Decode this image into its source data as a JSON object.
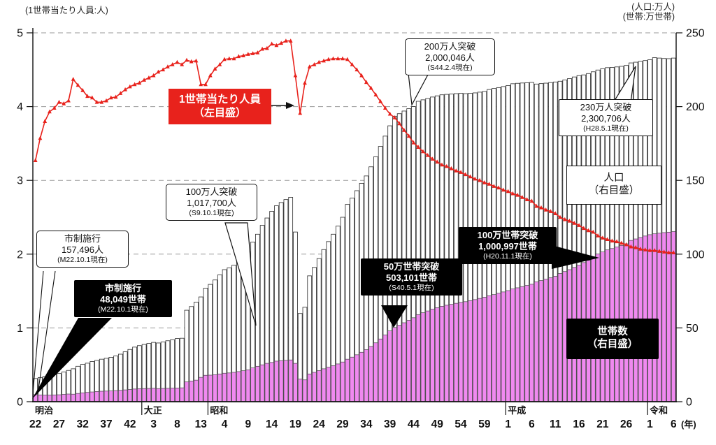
{
  "page": {
    "left_unit_label": "(1世帯当たり人員:人)",
    "right_unit_label_1": "(人口:万人)",
    "right_unit_label_2": "(世帯:万世帯)",
    "year_unit_label": "(年)"
  },
  "legend": {
    "line": {
      "line1": "1世帯当たり人員",
      "line2": "（左目盛）",
      "color": "#e8221c"
    },
    "population": {
      "line1": "人口",
      "line2": "（右目盛）"
    },
    "households": {
      "line1": "世帯数",
      "line2": "（右目盛）"
    }
  },
  "callouts": {
    "shisei_pop": {
      "line1": "市制施行",
      "line2": "157,496人",
      "line3": "(M22.10.1現在)"
    },
    "shisei_hh": {
      "line1": "市制施行",
      "line2": "48,049世帯",
      "line3": "(M22.10.1現在)"
    },
    "pop_1m": {
      "line1": "100万人突破",
      "line2": "1,017,700人",
      "line3": "(S9.10.1現在)"
    },
    "pop_2m": {
      "line1": "200万人突破",
      "line2": "2,000,046人",
      "line3": "(S44.2.4現在)"
    },
    "pop_2_3m": {
      "line1": "230万人突破",
      "line2": "2,300,706人",
      "line3": "(H28.5.1現在)"
    },
    "hh_500k": {
      "line1": "50万世帯突破",
      "line2": "503,101世帯",
      "line3": "(S40.5.1現在)"
    },
    "hh_1m": {
      "line1": "100万世帯突破",
      "line2": "1,000,997世帯",
      "line3": "(H20.11.1現在)"
    }
  },
  "chart_data": {
    "type": "bar",
    "subtype": "combo-bar-line",
    "title": "",
    "x": {
      "start_year": 1889,
      "end_year": 2024,
      "unit": "(年)"
    },
    "left_axis": {
      "label": "(1世帯当たり人員:人)",
      "min": 0,
      "max": 5,
      "ticks": [
        "0",
        "1",
        "2",
        "3",
        "4",
        "5"
      ]
    },
    "right_axis": {
      "labels": [
        "(人口:万人)",
        "(世帯:万世帯)"
      ],
      "min": 0,
      "max": 250,
      "ticks": [
        "0",
        "50",
        "100",
        "150",
        "200",
        "250"
      ]
    },
    "grid": "dashed-horizontal",
    "eras": [
      {
        "name": "明治",
        "start_year": 1889
      },
      {
        "name": "大正",
        "start_year": 1912
      },
      {
        "name": "昭和",
        "start_year": 1926
      },
      {
        "name": "平成",
        "start_year": 1989
      },
      {
        "name": "令和",
        "start_year": 2019
      }
    ],
    "x_tick_years": [
      {
        "era": "明治",
        "num": "22",
        "year": 1889
      },
      {
        "era": "明治",
        "num": "27",
        "year": 1894
      },
      {
        "era": "明治",
        "num": "32",
        "year": 1899
      },
      {
        "era": "明治",
        "num": "37",
        "year": 1904
      },
      {
        "era": "明治",
        "num": "42",
        "year": 1909
      },
      {
        "era": "大正",
        "num": "3",
        "year": 1914
      },
      {
        "era": "大正",
        "num": "8",
        "year": 1919
      },
      {
        "era": "大正",
        "num": "13",
        "year": 1924
      },
      {
        "era": "昭和",
        "num": "4",
        "year": 1929
      },
      {
        "era": "昭和",
        "num": "9",
        "year": 1934
      },
      {
        "era": "昭和",
        "num": "14",
        "year": 1939
      },
      {
        "era": "昭和",
        "num": "19",
        "year": 1944
      },
      {
        "era": "昭和",
        "num": "24",
        "year": 1949
      },
      {
        "era": "昭和",
        "num": "29",
        "year": 1954
      },
      {
        "era": "昭和",
        "num": "34",
        "year": 1959
      },
      {
        "era": "昭和",
        "num": "39",
        "year": 1964
      },
      {
        "era": "昭和",
        "num": "44",
        "year": 1969
      },
      {
        "era": "昭和",
        "num": "49",
        "year": 1974
      },
      {
        "era": "昭和",
        "num": "54",
        "year": 1979
      },
      {
        "era": "昭和",
        "num": "59",
        "year": 1984
      },
      {
        "era": "平成",
        "num": "1",
        "year": 1989
      },
      {
        "era": "平成",
        "num": "6",
        "year": 1994
      },
      {
        "era": "平成",
        "num": "11",
        "year": 1999
      },
      {
        "era": "平成",
        "num": "16",
        "year": 2004
      },
      {
        "era": "平成",
        "num": "21",
        "year": 2009
      },
      {
        "era": "平成",
        "num": "26",
        "year": 2014
      },
      {
        "era": "令和",
        "num": "1",
        "year": 2019
      },
      {
        "era": "令和",
        "num": "6",
        "year": 2024
      }
    ],
    "series": [
      {
        "name": "人口（右目盛）",
        "type": "bar",
        "axis": "right",
        "unit": "万人",
        "color": "#ffffff",
        "stroke": "#2a2a2a",
        "values": [
          15.7,
          16.4,
          17.1,
          17.7,
          18.3,
          19.1,
          20.2,
          21.2,
          22.3,
          24.0,
          25.3,
          26.1,
          27.2,
          28.0,
          28.8,
          29.4,
          30.1,
          31.0,
          32.2,
          33.8,
          35.4,
          37.0,
          38.0,
          38.8,
          39.5,
          40.2,
          39.8,
          40.5,
          41.3,
          42.0,
          42.8,
          43.0,
          62.0,
          64.5,
          67.5,
          71.0,
          76.9,
          79.5,
          82.5,
          86.0,
          89.5,
          90.7,
          92.5,
          95.5,
          98.5,
          101.8,
          108.2,
          113.5,
          119.5,
          124.5,
          129.0,
          132.8,
          135.0,
          137.0,
          138.5,
          115.0,
          59.8,
          64.0,
          85.3,
          91.0,
          97.0,
          103.1,
          108.5,
          113.5,
          119.0,
          125.0,
          133.7,
          138.0,
          143.0,
          148.0,
          153.0,
          159.2,
          166.0,
          173.0,
          180.0,
          187.0,
          193.5,
          195.2,
          197.0,
          198.6,
          200.0,
          203.6,
          204.6,
          205.5,
          206.5,
          207.3,
          208.0,
          208.3,
          208.5,
          208.8,
          209.0,
          208.8,
          209.0,
          209.3,
          209.8,
          210.3,
          211.6,
          212.3,
          212.9,
          213.6,
          214.3,
          215.5,
          215.8,
          216.0,
          216.2,
          216.4,
          215.3,
          215.6,
          215.9,
          216.3,
          216.7,
          217.2,
          218.1,
          219.0,
          220.1,
          221.0,
          221.5,
          222.4,
          223.6,
          224.8,
          225.7,
          226.4,
          226.6,
          226.9,
          227.3,
          227.9,
          229.6,
          230.1,
          230.7,
          231.2,
          231.8,
          233.2,
          232.9,
          232.6,
          232.5,
          232.9
        ]
      },
      {
        "name": "世帯数（右目盛）",
        "type": "bar",
        "axis": "right",
        "unit": "万世帯",
        "color": "#f089f0",
        "stroke": "#4a4a4a",
        "values": [
          4.8,
          4.6,
          4.5,
          4.5,
          4.6,
          4.7,
          5.0,
          5.2,
          5.1,
          5.6,
          6.0,
          6.3,
          6.6,
          6.9,
          7.1,
          7.2,
          7.3,
          7.5,
          7.7,
          8.0,
          8.3,
          8.6,
          8.8,
          8.9,
          9.0,
          9.1,
          8.9,
          9.0,
          9.1,
          9.2,
          9.3,
          9.4,
          13.4,
          14.0,
          14.6,
          16.5,
          17.9,
          18.0,
          18.3,
          18.8,
          19.3,
          19.5,
          19.9,
          20.4,
          21.0,
          21.6,
          22.9,
          24.0,
          25.0,
          26.0,
          26.6,
          27.5,
          27.8,
          28.0,
          28.3,
          26.0,
          15.3,
          14.8,
          18.8,
          19.9,
          21.1,
          22.3,
          23.4,
          24.4,
          25.6,
          26.9,
          28.8,
          30.2,
          31.8,
          33.5,
          35.3,
          37.5,
          39.9,
          42.5,
          45.2,
          48.0,
          50.3,
          51.8,
          53.5,
          55.2,
          56.9,
          59.0,
          60.3,
          61.5,
          62.7,
          63.7,
          64.7,
          65.4,
          66.0,
          66.7,
          67.3,
          67.8,
          68.5,
          69.2,
          70.0,
          70.8,
          71.8,
          72.6,
          73.5,
          74.4,
          75.3,
          76.4,
          77.2,
          78.0,
          78.8,
          79.6,
          81.2,
          82.1,
          83.0,
          84.0,
          85.0,
          86.9,
          88.2,
          89.5,
          91.0,
          92.5,
          94.3,
          95.8,
          97.4,
          100.1,
          101.5,
          102.9,
          103.8,
          104.8,
          105.9,
          107.0,
          109.3,
          110.3,
          111.3,
          112.3,
          113.2,
          113.8,
          114.2,
          114.6,
          114.9,
          115.3
        ]
      },
      {
        "name": "1世帯当たり人員（左目盛）",
        "type": "line",
        "axis": "left",
        "unit": "人",
        "color": "#e8221c",
        "marker": "triangle-up",
        "values": [
          3.27,
          3.57,
          3.8,
          3.93,
          3.98,
          4.06,
          4.04,
          4.08,
          4.37,
          4.29,
          4.22,
          4.14,
          4.12,
          4.06,
          4.06,
          4.08,
          4.12,
          4.13,
          4.18,
          4.23,
          4.27,
          4.3,
          4.32,
          4.36,
          4.39,
          4.42,
          4.47,
          4.5,
          4.54,
          4.57,
          4.6,
          4.57,
          4.63,
          4.61,
          4.62,
          4.3,
          4.3,
          4.42,
          4.51,
          4.57,
          4.64,
          4.65,
          4.65,
          4.68,
          4.69,
          4.71,
          4.72,
          4.73,
          4.78,
          4.79,
          4.85,
          4.83,
          4.86,
          4.89,
          4.89,
          4.42,
          3.91,
          4.32,
          4.54,
          4.57,
          4.6,
          4.62,
          4.64,
          4.65,
          4.65,
          4.65,
          4.64,
          4.57,
          4.5,
          4.42,
          4.33,
          4.25,
          4.16,
          4.07,
          3.98,
          3.9,
          3.85,
          3.77,
          3.68,
          3.6,
          3.51,
          3.45,
          3.39,
          3.34,
          3.29,
          3.25,
          3.21,
          3.19,
          3.16,
          3.13,
          3.11,
          3.08,
          3.05,
          3.02,
          3.0,
          2.97,
          2.95,
          2.92,
          2.9,
          2.87,
          2.85,
          2.82,
          2.8,
          2.77,
          2.74,
          2.72,
          2.65,
          2.63,
          2.6,
          2.58,
          2.55,
          2.5,
          2.47,
          2.45,
          2.42,
          2.39,
          2.35,
          2.32,
          2.3,
          2.25,
          2.22,
          2.2,
          2.18,
          2.17,
          2.15,
          2.13,
          2.1,
          2.09,
          2.07,
          2.06,
          2.05,
          2.05,
          2.04,
          2.03,
          2.02,
          2.02
        ]
      }
    ]
  }
}
